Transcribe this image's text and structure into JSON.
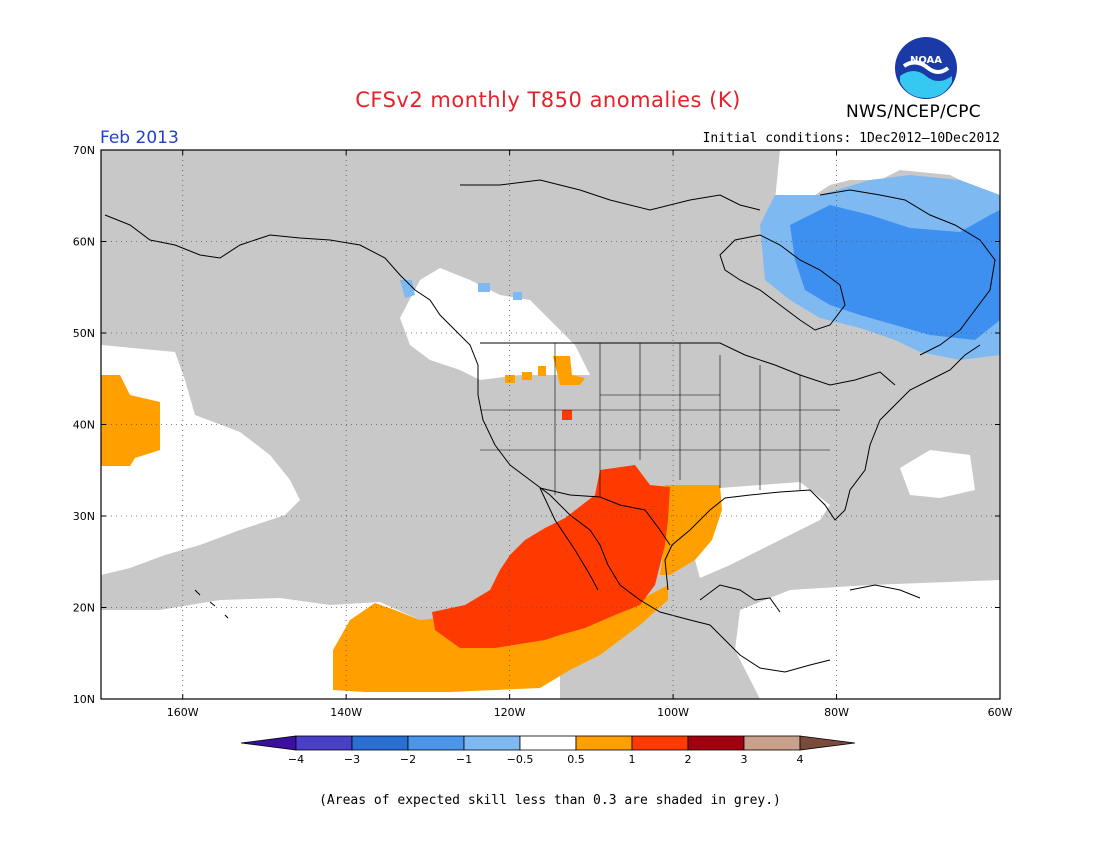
{
  "header": {
    "title": "CFSv2 monthly T850 anomalies (K)",
    "agency": "NWS/NCEP/CPC",
    "logo_text": "NOAA",
    "month": "Feb 2013",
    "initial_conditions": "Initial conditions: 1Dec2012—10Dec2012"
  },
  "map": {
    "lat_ticks": [
      "70N",
      "60N",
      "50N",
      "40N",
      "30N",
      "20N",
      "10N"
    ],
    "lon_ticks": [
      "160W",
      "140W",
      "120W",
      "100W",
      "80W",
      "60W"
    ],
    "lat_range": [
      10,
      70
    ],
    "lon_range": [
      -170,
      -60
    ],
    "skill_mask_color": "#c8c8c8"
  },
  "colorbar": {
    "labels": [
      "−4",
      "−3",
      "−2",
      "−1",
      "−0.5",
      "0.5",
      "1",
      "2",
      "3",
      "4"
    ],
    "colors": [
      "#3a10a0",
      "#4a40c8",
      "#2a6fd4",
      "#4b96ea",
      "#7eb9f2",
      "#ffffff",
      "#ffa000",
      "#ff3a00",
      "#a00010",
      "#c8a08c",
      "#7a4a3a"
    ]
  },
  "footer": {
    "note": "(Areas of expected skill less than 0.3 are shaded in grey.)"
  },
  "colors": {
    "title": "#e8202a",
    "month": "#2040d0",
    "grey": "#c8c8c8",
    "orange": "#ffa000",
    "red": "#ff3a00",
    "blue": "#3d8ff0",
    "light_blue": "#7eb9f2"
  }
}
